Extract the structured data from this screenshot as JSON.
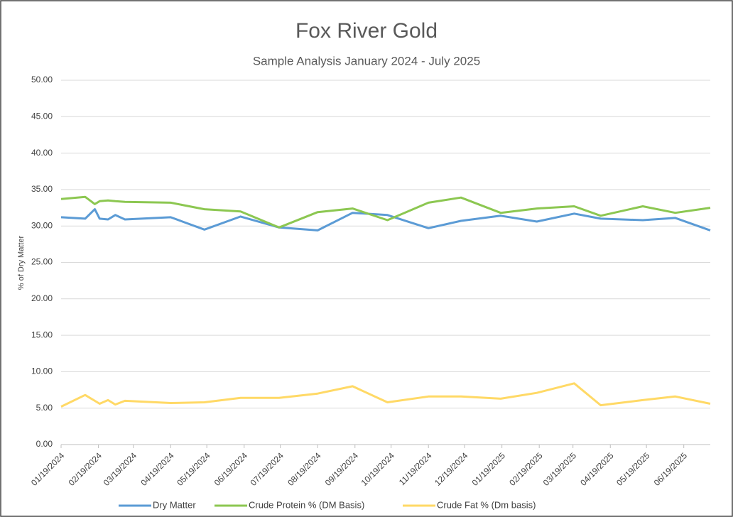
{
  "chart_data": {
    "type": "line",
    "title": "Fox River Gold",
    "subtitle": "Sample Analysis January 2024 - July 2025",
    "y_label": "% of Dry Matter",
    "x": [
      "01/19/2024",
      "02/08/2024",
      "02/16/2024",
      "02/20/2024",
      "02/27/2024",
      "03/04/2024",
      "03/12/2024",
      "04/19/2024",
      "05/17/2024",
      "06/16/2024",
      "07/18/2024",
      "08/19/2024",
      "09/17/2024",
      "10/16/2024",
      "11/19/2024",
      "12/16/2024",
      "01/18/2025",
      "02/17/2025",
      "03/20/2025",
      "04/11/2025",
      "05/16/2025",
      "06/12/2025",
      "07/11/2025"
    ],
    "series": [
      {
        "name": "Dry Matter",
        "color": "#5b9bd5",
        "values": [
          31.2,
          31.0,
          32.3,
          31.0,
          30.9,
          31.5,
          30.9,
          31.2,
          29.5,
          31.3,
          29.8,
          29.4,
          31.8,
          31.5,
          29.7,
          30.7,
          31.4,
          30.6,
          31.7,
          31.0,
          30.8,
          31.1,
          29.4
        ]
      },
      {
        "name": "Crude Protein  % (DM Basis)",
        "color": "#8cc751",
        "values": [
          33.7,
          34.0,
          33.0,
          33.4,
          33.5,
          33.4,
          33.3,
          33.2,
          32.3,
          32.0,
          29.8,
          31.9,
          32.4,
          30.8,
          33.2,
          33.9,
          31.8,
          32.4,
          32.7,
          31.4,
          32.7,
          31.8,
          32.5
        ]
      },
      {
        "name": "Crude Fat % (Dm basis)",
        "color": "#ffd966",
        "values": [
          5.2,
          6.8,
          6.0,
          5.6,
          6.1,
          5.5,
          6.0,
          5.7,
          5.8,
          6.4,
          6.4,
          7.0,
          8.0,
          5.8,
          6.6,
          6.6,
          6.3,
          7.1,
          8.4,
          5.4,
          6.1,
          6.6,
          5.6
        ]
      }
    ],
    "xlim": [
      "01/19/2024",
      "07/11/2025"
    ],
    "xticks": [
      "01/19/2024",
      "02/19/2024",
      "03/19/2024",
      "04/19/2024",
      "05/19/2024",
      "06/19/2024",
      "07/19/2024",
      "08/19/2024",
      "09/19/2024",
      "10/19/2024",
      "11/19/2024",
      "12/19/2024",
      "01/19/2025",
      "02/19/2025",
      "03/19/2025",
      "04/19/2025",
      "05/19/2025",
      "06/19/2025"
    ],
    "ylim": [
      0,
      50
    ],
    "yticks": [
      {
        "value": 0,
        "label": "0.00"
      },
      {
        "value": 5,
        "label": "5.00"
      },
      {
        "value": 10,
        "label": "10.00"
      },
      {
        "value": 15,
        "label": "15.00"
      },
      {
        "value": 20,
        "label": "20.00"
      },
      {
        "value": 25,
        "label": "25.00"
      },
      {
        "value": 30,
        "label": "30.00"
      },
      {
        "value": 35,
        "label": "35.00"
      },
      {
        "value": 40,
        "label": "40.00"
      },
      {
        "value": 45,
        "label": "45.00"
      },
      {
        "value": 50,
        "label": "50.00"
      }
    ],
    "grid": true,
    "legend": "bottom"
  }
}
